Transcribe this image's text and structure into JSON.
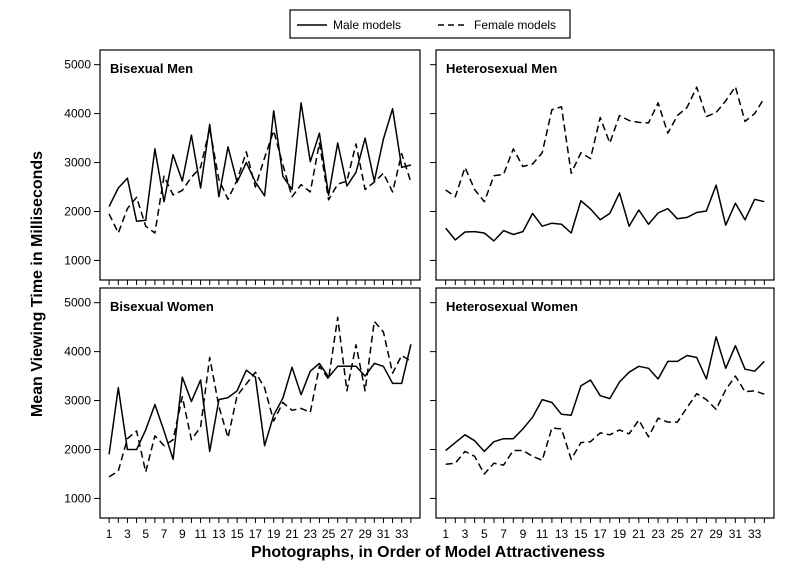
{
  "legend": {
    "male": "Male models",
    "female": "Female models"
  },
  "axes": {
    "ylabel": "Mean Viewing Time in Milliseconds",
    "xlabel": "Photographs, in Order of Model Attractiveness"
  },
  "colors": {
    "line": "#000000",
    "frame": "#000000",
    "background": "#ffffff"
  },
  "chart_data": [
    {
      "type": "line",
      "title": "Bisexual Men",
      "xticks": [
        1,
        3,
        5,
        7,
        9,
        11,
        13,
        15,
        17,
        19,
        21,
        23,
        25,
        27,
        29,
        31,
        33
      ],
      "yticks": [
        1000,
        2000,
        3000,
        4000,
        5000
      ],
      "xlim": [
        0,
        35
      ],
      "ylim": [
        600,
        5300
      ],
      "x": [
        1,
        2,
        3,
        4,
        5,
        6,
        7,
        8,
        9,
        10,
        11,
        12,
        13,
        14,
        15,
        16,
        17,
        18,
        19,
        20,
        21,
        22,
        23,
        24,
        25,
        26,
        27,
        28,
        29,
        30,
        31,
        32,
        33,
        34
      ],
      "series": [
        {
          "name": "Male models",
          "style": "solid",
          "values": [
            2100,
            2480,
            2680,
            1800,
            1820,
            3280,
            2200,
            3160,
            2620,
            3560,
            2480,
            3780,
            2300,
            3320,
            2600,
            3000,
            2600,
            2320,
            4060,
            2720,
            2450,
            4220,
            3020,
            3600,
            2330,
            3400,
            2520,
            2800,
            3500,
            2620,
            3480,
            4100,
            2900,
            2950
          ]
        },
        {
          "name": "Female models",
          "style": "dashed",
          "values": [
            1950,
            1560,
            2060,
            2290,
            1700,
            1560,
            2720,
            2340,
            2430,
            2700,
            2900,
            3700,
            2650,
            2250,
            2640,
            3220,
            2500,
            3100,
            3650,
            2950,
            2300,
            2550,
            2400,
            3400,
            2240,
            2560,
            2620,
            3380,
            2450,
            2600,
            2780,
            2400,
            3180,
            2600
          ]
        }
      ]
    },
    {
      "type": "line",
      "title": "Heterosexual Men",
      "xticks": [
        1,
        3,
        5,
        7,
        9,
        11,
        13,
        15,
        17,
        19,
        21,
        23,
        25,
        27,
        29,
        31,
        33
      ],
      "yticks": [
        1000,
        2000,
        3000,
        4000,
        5000
      ],
      "xlim": [
        0,
        35
      ],
      "ylim": [
        600,
        5300
      ],
      "x": [
        1,
        2,
        3,
        4,
        5,
        6,
        7,
        8,
        9,
        10,
        11,
        12,
        13,
        14,
        15,
        16,
        17,
        18,
        19,
        20,
        21,
        22,
        23,
        24,
        25,
        26,
        27,
        28,
        29,
        30,
        31,
        32,
        33,
        34
      ],
      "series": [
        {
          "name": "Male models",
          "style": "solid",
          "values": [
            1660,
            1420,
            1580,
            1590,
            1560,
            1400,
            1610,
            1530,
            1590,
            1960,
            1700,
            1760,
            1740,
            1560,
            2220,
            2050,
            1830,
            1960,
            2380,
            1700,
            2030,
            1740,
            1970,
            2060,
            1850,
            1880,
            1980,
            2010,
            2540,
            1720,
            2170,
            1830,
            2250,
            2200
          ]
        },
        {
          "name": "Female models",
          "style": "dashed",
          "values": [
            2440,
            2300,
            2900,
            2450,
            2200,
            2730,
            2760,
            3280,
            2920,
            2970,
            3200,
            4080,
            4140,
            2780,
            3200,
            3080,
            3920,
            3400,
            3960,
            3860,
            3820,
            3810,
            4220,
            3600,
            3960,
            4130,
            4540,
            3940,
            4020,
            4260,
            4550,
            3840,
            4000,
            4320
          ]
        }
      ]
    },
    {
      "type": "line",
      "title": "Bisexual Women",
      "xticks": [
        1,
        3,
        5,
        7,
        9,
        11,
        13,
        15,
        17,
        19,
        21,
        23,
        25,
        27,
        29,
        31,
        33
      ],
      "yticks": [
        1000,
        2000,
        3000,
        4000,
        5000
      ],
      "xlim": [
        0,
        35
      ],
      "ylim": [
        600,
        5300
      ],
      "x": [
        1,
        2,
        3,
        4,
        5,
        6,
        7,
        8,
        9,
        10,
        11,
        12,
        13,
        14,
        15,
        16,
        17,
        18,
        19,
        20,
        21,
        22,
        23,
        24,
        25,
        26,
        27,
        28,
        29,
        30,
        31,
        32,
        33,
        34
      ],
      "series": [
        {
          "name": "Male models",
          "style": "solid",
          "values": [
            1900,
            3260,
            2000,
            2000,
            2400,
            2920,
            2380,
            1800,
            3480,
            2980,
            3420,
            1960,
            3020,
            3060,
            3200,
            3620,
            3480,
            2080,
            2700,
            3050,
            3680,
            3120,
            3600,
            3760,
            3480,
            3700,
            3700,
            3700,
            3500,
            3760,
            3700,
            3350,
            3350,
            4150
          ]
        },
        {
          "name": "Female models",
          "style": "dashed",
          "values": [
            1440,
            1560,
            2220,
            2380,
            1540,
            2280,
            2080,
            2200,
            3080,
            2200,
            2460,
            3880,
            2880,
            2240,
            3100,
            3340,
            3580,
            3260,
            2580,
            2960,
            2800,
            2840,
            2760,
            3700,
            3440,
            4700,
            3200,
            4140,
            3200,
            4620,
            4400,
            3560,
            3920,
            3800
          ]
        }
      ]
    },
    {
      "type": "line",
      "title": "Heterosexual Women",
      "xticks": [
        1,
        3,
        5,
        7,
        9,
        11,
        13,
        15,
        17,
        19,
        21,
        23,
        25,
        27,
        29,
        31,
        33
      ],
      "yticks": [
        1000,
        2000,
        3000,
        4000,
        5000
      ],
      "xlim": [
        0,
        35
      ],
      "ylim": [
        600,
        5300
      ],
      "x": [
        1,
        2,
        3,
        4,
        5,
        6,
        7,
        8,
        9,
        10,
        11,
        12,
        13,
        14,
        15,
        16,
        17,
        18,
        19,
        20,
        21,
        22,
        23,
        24,
        25,
        26,
        27,
        28,
        29,
        30,
        31,
        32,
        33,
        34
      ],
      "series": [
        {
          "name": "Male models",
          "style": "solid",
          "values": [
            1980,
            2140,
            2300,
            2180,
            1960,
            2160,
            2220,
            2220,
            2420,
            2660,
            3020,
            2960,
            2720,
            2700,
            3300,
            3420,
            3100,
            3040,
            3380,
            3580,
            3700,
            3660,
            3440,
            3800,
            3800,
            3920,
            3880,
            3440,
            4300,
            3660,
            4120,
            3640,
            3600,
            3800
          ]
        },
        {
          "name": "Female models",
          "style": "dashed",
          "values": [
            1700,
            1720,
            1960,
            1860,
            1500,
            1720,
            1680,
            1980,
            1980,
            1860,
            1780,
            2440,
            2420,
            1800,
            2140,
            2160,
            2340,
            2300,
            2400,
            2320,
            2600,
            2260,
            2640,
            2560,
            2560,
            2860,
            3140,
            3020,
            2820,
            3220,
            3500,
            3180,
            3200,
            3130
          ]
        }
      ]
    }
  ]
}
